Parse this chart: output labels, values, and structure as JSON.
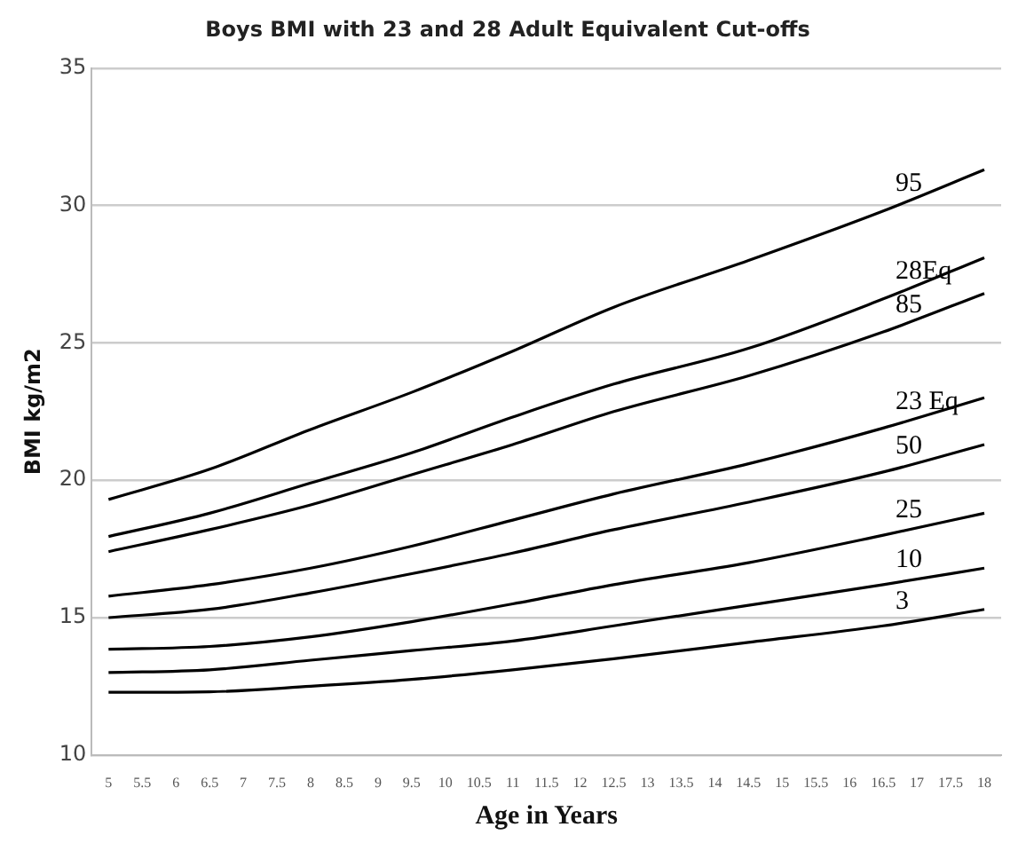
{
  "chart_data": {
    "type": "line",
    "title": "Boys BMI with 23 and 28 Adult Equivalent Cut-offs",
    "xlabel": "Age in Years",
    "ylabel": "BMI kg/m2",
    "x": [
      5,
      6.5,
      8,
      9.5,
      11,
      12.5,
      14.5,
      16.5,
      18
    ],
    "series": [
      {
        "name": "95",
        "color": "#000000",
        "values": [
          19.3,
          20.4,
          21.85,
          23.2,
          24.7,
          26.3,
          28.0,
          29.8,
          31.3
        ]
      },
      {
        "name": "28Eq",
        "color": "#000000",
        "values": [
          17.95,
          18.8,
          19.9,
          21.0,
          22.3,
          23.5,
          24.8,
          26.6,
          28.1
        ]
      },
      {
        "name": "85",
        "color": "#000000",
        "values": [
          17.4,
          18.2,
          19.1,
          20.2,
          21.3,
          22.5,
          23.8,
          25.4,
          26.8
        ]
      },
      {
        "name": "23 Eq",
        "color": "#000000",
        "values": [
          15.78,
          16.2,
          16.8,
          17.6,
          18.55,
          19.5,
          20.6,
          21.9,
          23.0
        ]
      },
      {
        "name": "50",
        "color": "#000000",
        "values": [
          15.0,
          15.3,
          15.9,
          16.6,
          17.35,
          18.2,
          19.2,
          20.3,
          21.3
        ]
      },
      {
        "name": "25",
        "color": "#000000",
        "values": [
          13.85,
          13.95,
          14.3,
          14.85,
          15.5,
          16.2,
          17.0,
          18.0,
          18.8
        ]
      },
      {
        "name": "10",
        "color": "#000000",
        "values": [
          13.0,
          13.1,
          13.45,
          13.8,
          14.15,
          14.7,
          15.45,
          16.2,
          16.8
        ]
      },
      {
        "name": "3",
        "color": "#000000",
        "values": [
          12.28,
          12.3,
          12.5,
          12.75,
          13.1,
          13.5,
          14.1,
          14.7,
          15.3
        ]
      }
    ],
    "xlim": [
      4.75,
      18.25
    ],
    "xticks": [
      5,
      5.5,
      6,
      6.5,
      7,
      7.5,
      8,
      8.5,
      9,
      9.5,
      10,
      10.5,
      11,
      11.5,
      12,
      12.5,
      13,
      13.5,
      14,
      14.5,
      15,
      15.5,
      16,
      16.5,
      17,
      17.5,
      18
    ],
    "ylim": [
      10,
      35
    ],
    "yticks": [
      10,
      15,
      20,
      25,
      30,
      35
    ],
    "grid": "y",
    "legend": false,
    "marker": "none",
    "line_style": "solid"
  }
}
